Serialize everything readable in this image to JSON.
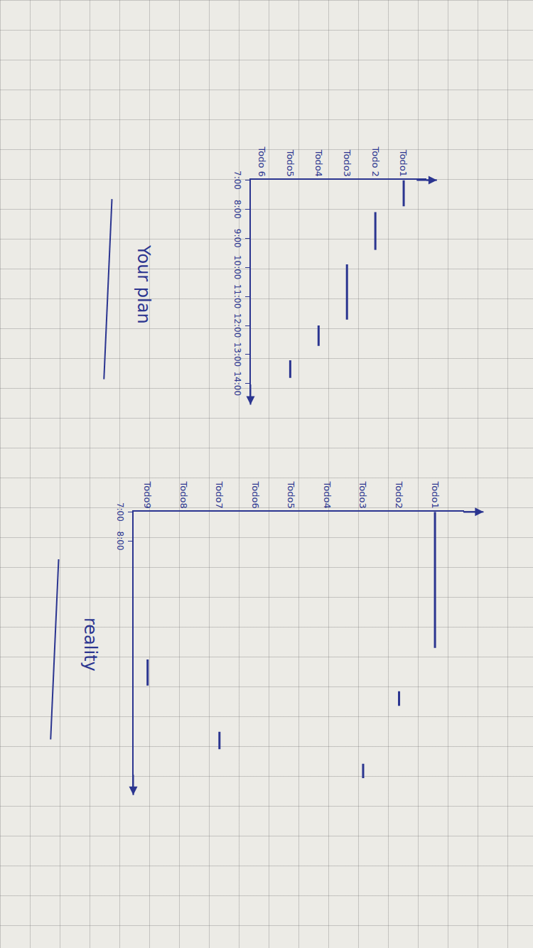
{
  "chart_data": [
    {
      "type": "gantt",
      "title": "Your plan",
      "categories": [
        "Todo1",
        "Todo 2",
        "Todo3",
        "Todo4",
        "Todo5",
        "Todo 6"
      ],
      "start": [
        7.0,
        8.1,
        9.9,
        12.0,
        13.2,
        null
      ],
      "end": [
        7.9,
        9.4,
        11.8,
        12.7,
        13.8,
        null
      ],
      "xlim": [
        7,
        14.5
      ],
      "xticks": [
        {
          "value": 7,
          "label": "7:00"
        },
        {
          "value": 8,
          "label": "8:00"
        },
        {
          "value": 9,
          "label": "9:00"
        },
        {
          "value": 10,
          "label": "10:00"
        },
        {
          "value": 11,
          "label": "11:00"
        },
        {
          "value": 12,
          "label": "12:00"
        },
        {
          "value": 13,
          "label": "13:00"
        },
        {
          "value": 14,
          "label": "14:00"
        }
      ],
      "color": "#2b3590",
      "grid": false
    },
    {
      "type": "gantt",
      "title": "reality",
      "categories": [
        "Todo1",
        "Todo2",
        "Todo3",
        "Todo4",
        "Todo5",
        "Todo6",
        "Todo7",
        "Todo8",
        "Todo9"
      ],
      "start": [
        7.0,
        13.2,
        15.7,
        null,
        null,
        null,
        14.6,
        null,
        12.1
      ],
      "end": [
        11.7,
        13.7,
        16.2,
        null,
        null,
        null,
        15.2,
        null,
        13.0
      ],
      "xlim": [
        7,
        16.5
      ],
      "xticks": [
        {
          "value": 7,
          "label": "7:00"
        },
        {
          "value": 8,
          "label": "8:00"
        }
      ],
      "color": "#2b3590",
      "grid": false
    }
  ]
}
